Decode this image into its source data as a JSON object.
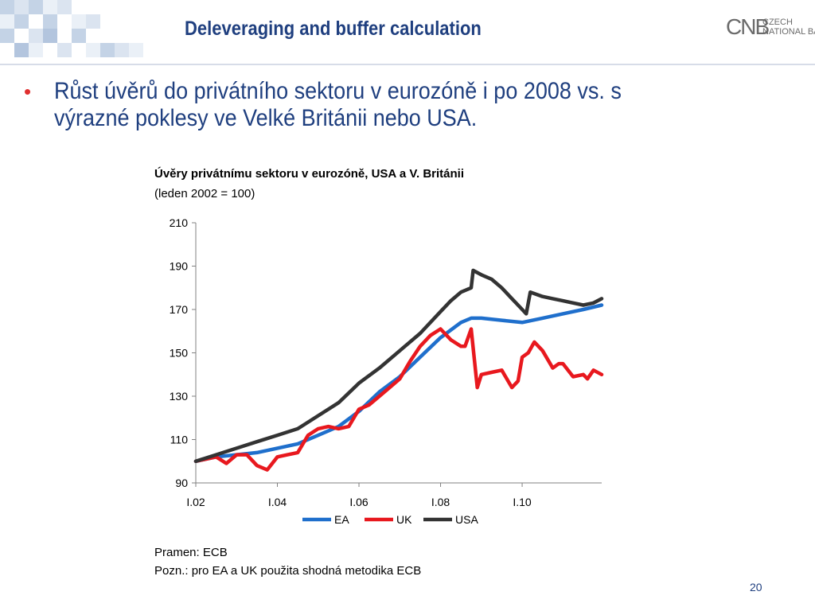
{
  "slide": {
    "title": "Deleveraging and buffer calculation",
    "logo_mark": "CNB",
    "logo_line1": "CZECH",
    "logo_line2": "NATIONAL BANK",
    "bullet": "Růst úvěrů do privátního sektoru v eurozóně i po 2008 vs. s výrazné poklesy ve Velké Británii nebo USA.",
    "source": "Pramen: ECB",
    "note": "Pozn.: pro EA a UK použita shodná metodika ECB",
    "page_number": "20"
  },
  "colors": {
    "title": "#1f3f7f",
    "bullet": "#e03030",
    "EA": "#1f6fcc",
    "UK": "#e8181e",
    "USA": "#333333"
  },
  "chart_data": {
    "type": "line",
    "title": "Úvěry privátnímu sektoru v eurozóně, USA a V. Británii",
    "subtitle": "(leden 2002 = 100)",
    "x_ticks": [
      "I.02",
      "I.04",
      "I.06",
      "I.08",
      "I.10"
    ],
    "x_tick_values": [
      2002,
      2004,
      2006,
      2008,
      2010
    ],
    "xlim": [
      2002,
      2011.95
    ],
    "ylim": [
      90,
      210
    ],
    "y_ticks": [
      90,
      110,
      130,
      150,
      170,
      190,
      210
    ],
    "legend_position": "bottom",
    "grid": false,
    "series": [
      {
        "name": "EA",
        "x": [
          2002,
          2002.5,
          2003,
          2003.5,
          2004,
          2004.5,
          2005,
          2005.5,
          2006,
          2006.5,
          2007,
          2007.5,
          2008,
          2008.5,
          2008.75,
          2009,
          2009.5,
          2010,
          2010.5,
          2011,
          2011.5,
          2011.95
        ],
        "values": [
          100,
          102,
          103,
          104,
          106,
          108,
          112,
          116,
          123,
          132,
          139,
          148,
          157,
          164,
          166,
          166,
          165,
          164,
          166,
          168,
          170,
          172
        ]
      },
      {
        "name": "UK",
        "x": [
          2002,
          2002.25,
          2002.5,
          2002.75,
          2003,
          2003.25,
          2003.5,
          2003.75,
          2004,
          2004.25,
          2004.5,
          2004.75,
          2005,
          2005.25,
          2005.5,
          2005.75,
          2006,
          2006.25,
          2006.5,
          2006.75,
          2007,
          2007.25,
          2007.5,
          2007.75,
          2008,
          2008.25,
          2008.5,
          2008.6,
          2008.75,
          2008.9,
          2009,
          2009.25,
          2009.5,
          2009.75,
          2009.9,
          2010,
          2010.15,
          2010.3,
          2010.5,
          2010.75,
          2010.9,
          2011,
          2011.25,
          2011.5,
          2011.6,
          2011.75,
          2011.95
        ],
        "values": [
          100,
          101,
          102,
          99,
          103,
          103,
          98,
          96,
          102,
          103,
          104,
          112,
          115,
          116,
          115,
          116,
          124,
          126,
          130,
          134,
          138,
          146,
          153,
          158,
          161,
          156,
          153,
          153,
          161,
          134,
          140,
          141,
          142,
          134,
          137,
          148,
          150,
          155,
          151,
          143,
          145,
          145,
          139,
          140,
          138,
          142,
          140
        ]
      },
      {
        "name": "USA",
        "x": [
          2002,
          2002.5,
          2003,
          2003.5,
          2004,
          2004.5,
          2005,
          2005.5,
          2006,
          2006.5,
          2007,
          2007.5,
          2008,
          2008.25,
          2008.5,
          2008.75,
          2008.8,
          2009,
          2009.25,
          2009.5,
          2009.75,
          2010,
          2010.1,
          2010.2,
          2010.5,
          2010.75,
          2011,
          2011.25,
          2011.5,
          2011.75,
          2011.95
        ],
        "values": [
          100,
          103,
          106,
          109,
          112,
          115,
          121,
          127,
          136,
          143,
          151,
          159,
          169,
          174,
          178,
          180,
          188,
          186,
          184,
          180,
          175,
          170,
          168,
          178,
          176,
          175,
          174,
          173,
          172,
          173,
          175
        ]
      }
    ]
  }
}
